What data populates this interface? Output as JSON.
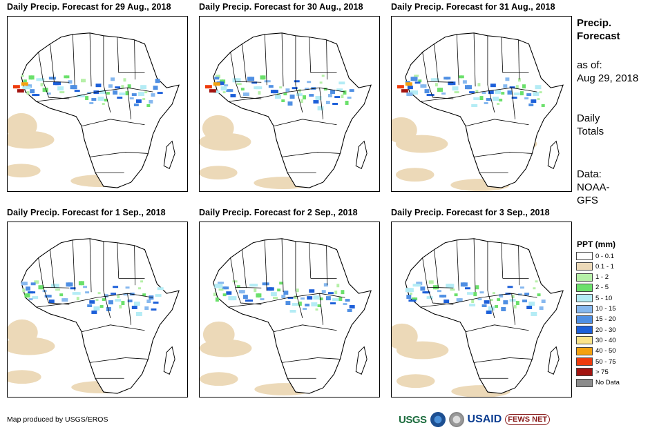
{
  "panels": [
    {
      "title": "Daily Precip. Forecast for 29 Aug., 2018"
    },
    {
      "title": "Daily Precip. Forecast for 30 Aug., 2018"
    },
    {
      "title": "Daily Precip. Forecast for 31 Aug., 2018"
    },
    {
      "title": "Daily Precip. Forecast for 1 Sep., 2018"
    },
    {
      "title": "Daily Precip. Forecast for 2 Sep., 2018"
    },
    {
      "title": "Daily Precip. Forecast for 3 Sep., 2018"
    }
  ],
  "sidebar": {
    "title_line1": "Precip.",
    "title_line2": "Forecast",
    "asof_label": "as of:",
    "asof_date": "Aug 29, 2018",
    "totals_line1": "Daily",
    "totals_line2": "Totals",
    "data_line1": "Data:",
    "data_line2": "NOAA-",
    "data_line3": "GFS"
  },
  "legend": {
    "title": "PPT (mm)",
    "items": [
      {
        "label": "0 - 0.1",
        "color": "#ffffff"
      },
      {
        "label": "0.1 - 1",
        "color": "#ecd9b8"
      },
      {
        "label": "1 - 2",
        "color": "#b6f0a8"
      },
      {
        "label": "2 - 5",
        "color": "#6be06b"
      },
      {
        "label": "5 - 10",
        "color": "#b4ecf5"
      },
      {
        "label": "10 - 15",
        "color": "#86b8ef"
      },
      {
        "label": "15 - 20",
        "color": "#4f8fe3"
      },
      {
        "label": "20 - 30",
        "color": "#1c5fd9"
      },
      {
        "label": "30 - 40",
        "color": "#fbe38a"
      },
      {
        "label": "40 - 50",
        "color": "#f4a10f"
      },
      {
        "label": "50 - 75",
        "color": "#ee3b0c"
      },
      {
        "label": "> 75",
        "color": "#a31410"
      },
      {
        "label": "No Data",
        "color": "#8c8c8c"
      }
    ]
  },
  "credit": "Map produced by USGS/EROS",
  "logos": {
    "usgs": "USGS",
    "usaid": "USAID",
    "fews": "FEWS NET"
  }
}
